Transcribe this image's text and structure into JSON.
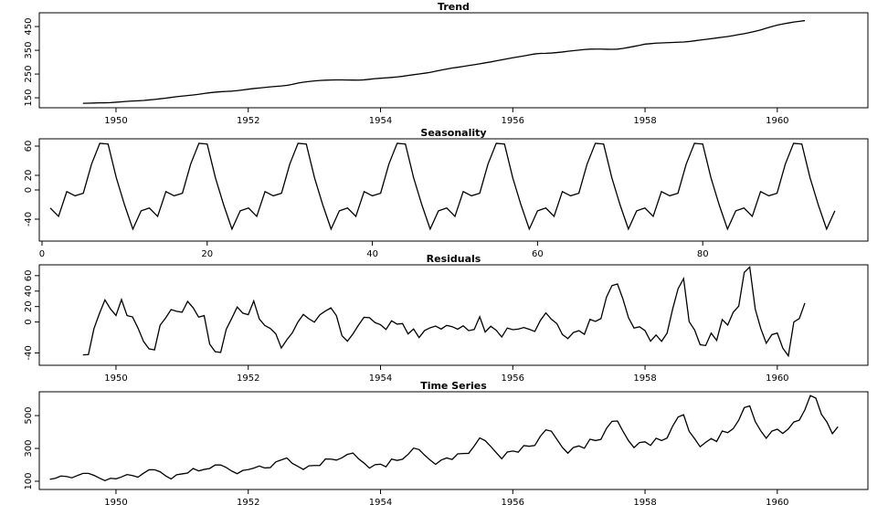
{
  "chart_data": [
    {
      "type": "line",
      "title": "Trend",
      "color": "#000000",
      "x": [
        1949.5,
        1949.583,
        1949.667,
        1949.75,
        1949.833,
        1949.917,
        1950,
        1950.083,
        1950.167,
        1950.25,
        1950.333,
        1950.417,
        1950.5,
        1950.583,
        1950.667,
        1950.75,
        1950.833,
        1950.917,
        1951,
        1951.083,
        1951.167,
        1951.25,
        1951.333,
        1951.417,
        1951.5,
        1951.583,
        1951.667,
        1951.75,
        1951.833,
        1951.917,
        1952,
        1952.083,
        1952.167,
        1952.25,
        1952.333,
        1952.417,
        1952.5,
        1952.583,
        1952.667,
        1952.75,
        1952.833,
        1952.917,
        1953,
        1953.083,
        1953.167,
        1953.25,
        1953.333,
        1953.417,
        1953.5,
        1953.583,
        1953.667,
        1953.75,
        1953.833,
        1953.917,
        1954,
        1954.083,
        1954.167,
        1954.25,
        1954.333,
        1954.417,
        1954.5,
        1954.583,
        1954.667,
        1954.75,
        1954.833,
        1954.917,
        1955,
        1955.083,
        1955.167,
        1955.25,
        1955.333,
        1955.417,
        1955.5,
        1955.583,
        1955.667,
        1955.75,
        1955.833,
        1955.917,
        1956,
        1956.083,
        1956.167,
        1956.25,
        1956.333,
        1956.417,
        1956.5,
        1956.583,
        1956.667,
        1956.75,
        1956.833,
        1956.917,
        1957,
        1957.083,
        1957.167,
        1957.25,
        1957.333,
        1957.417,
        1957.5,
        1957.583,
        1957.667,
        1957.75,
        1957.833,
        1957.917,
        1958,
        1958.083,
        1958.167,
        1958.25,
        1958.333,
        1958.417,
        1958.5,
        1958.583,
        1958.667,
        1958.75,
        1958.833,
        1958.917,
        1959,
        1959.083,
        1959.167,
        1959.25,
        1959.333,
        1959.417,
        1959.5,
        1959.583,
        1959.667,
        1959.75,
        1959.833,
        1959.917,
        1960,
        1960.083,
        1960.167,
        1960.25,
        1960.333,
        1960.417
      ],
      "values": [
        126.79,
        127.25,
        127.96,
        128.58,
        129.0,
        129.75,
        131.25,
        133.08,
        134.92,
        136.42,
        137.42,
        138.75,
        140.92,
        143.17,
        145.71,
        148.42,
        151.54,
        154.71,
        157.12,
        159.54,
        161.83,
        164.75,
        168.17,
        171.25,
        173.58,
        175.46,
        176.83,
        178.04,
        180.17,
        183.12,
        186.21,
        189.04,
        191.29,
        193.58,
        195.83,
        198.04,
        199.75,
        202.21,
        206.42,
        211.71,
        215.83,
        218.5,
        220.92,
        222.92,
        224.08,
        224.71,
        225.33,
        225.33,
        224.96,
        224.58,
        224.46,
        225.54,
        228.0,
        230.46,
        232.25,
        233.92,
        235.62,
        237.75,
        240.5,
        243.96,
        247.17,
        250.25,
        253.5,
        257.12,
        261.83,
        266.67,
        271.12,
        275.21,
        278.5,
        281.96,
        285.75,
        289.33,
        293.25,
        297.17,
        301.0,
        305.46,
        309.96,
        314.42,
        318.62,
        322.38,
        326.33,
        330.54,
        334.75,
        336.75,
        337.42,
        338.62,
        340.54,
        342.83,
        345.96,
        348.25,
        350.92,
        353.08,
        354.83,
        355.25,
        355.08,
        354.42,
        354.08,
        354.96,
        358.0,
        362.08,
        366.42,
        370.79,
        375.96,
        378,
        380,
        381,
        382,
        383,
        384,
        385,
        387,
        390,
        393,
        396,
        399,
        402,
        405,
        408,
        412,
        416,
        420,
        425,
        430,
        436,
        443,
        450,
        456,
        461,
        465,
        469,
        472,
        475
      ],
      "xlim": [
        1948.84,
        1961.37
      ],
      "xticks": [
        1950,
        1952,
        1954,
        1956,
        1958,
        1960
      ],
      "ylim": [
        108,
        508
      ],
      "yticks": [
        150,
        250,
        350,
        450
      ]
    },
    {
      "type": "line",
      "title": "Seasonality",
      "color": "#000000",
      "x": [
        1,
        2,
        3,
        4,
        5,
        6,
        7,
        8,
        9,
        10,
        11,
        12,
        13,
        14,
        15,
        16,
        17,
        18,
        19,
        20,
        21,
        22,
        23,
        24,
        25,
        26,
        27,
        28,
        29,
        30,
        31,
        32,
        33,
        34,
        35,
        36,
        37,
        38,
        39,
        40,
        41,
        42,
        43,
        44,
        45,
        46,
        47,
        48,
        49,
        50,
        51,
        52,
        53,
        54,
        55,
        56,
        57,
        58,
        59,
        60,
        61,
        62,
        63,
        64,
        65,
        66,
        67,
        68,
        69,
        70,
        71,
        72,
        73,
        74,
        75,
        76,
        77,
        78,
        79,
        80,
        81,
        82,
        83,
        84,
        85,
        86,
        87,
        88,
        89,
        90,
        91,
        92,
        93,
        94,
        95,
        96
      ],
      "values": [
        -24.75,
        -36.19,
        -2.24,
        -8.04,
        -4.51,
        35.4,
        63.83,
        62.82,
        16.52,
        -20.64,
        -53.59,
        -28.62,
        -24.75,
        -36.19,
        -2.24,
        -8.04,
        -4.51,
        35.4,
        63.83,
        62.82,
        16.52,
        -20.64,
        -53.59,
        -28.62,
        -24.75,
        -36.19,
        -2.24,
        -8.04,
        -4.51,
        35.4,
        63.83,
        62.82,
        16.52,
        -20.64,
        -53.59,
        -28.62,
        -24.75,
        -36.19,
        -2.24,
        -8.04,
        -4.51,
        35.4,
        63.83,
        62.82,
        16.52,
        -20.64,
        -53.59,
        -28.62,
        -24.75,
        -36.19,
        -2.24,
        -8.04,
        -4.51,
        35.4,
        63.83,
        62.82,
        16.52,
        -20.64,
        -53.59,
        -28.62,
        -24.75,
        -36.19,
        -2.24,
        -8.04,
        -4.51,
        35.4,
        63.83,
        62.82,
        16.52,
        -20.64,
        -53.59,
        -28.62,
        -24.75,
        -36.19,
        -2.24,
        -8.04,
        -4.51,
        35.4,
        63.83,
        62.82,
        16.52,
        -20.64,
        -53.59,
        -28.62,
        -24.75,
        -36.19,
        -2.24,
        -8.04,
        -4.51,
        35.4,
        63.83,
        62.82,
        16.52,
        -20.64,
        -53.59,
        -28.62
      ],
      "xlim": [
        -0.33,
        100
      ],
      "xticks": [
        0,
        20,
        40,
        60,
        80
      ],
      "ylim": [
        -70,
        70
      ],
      "yticks": [
        -40,
        0,
        20,
        60
      ]
    },
    {
      "type": "line",
      "title": "Residuals",
      "color": "#000000",
      "x": [
        1949.5,
        1949.583,
        1949.667,
        1949.75,
        1949.833,
        1949.917,
        1950,
        1950.083,
        1950.167,
        1950.25,
        1950.333,
        1950.417,
        1950.5,
        1950.583,
        1950.667,
        1950.75,
        1950.833,
        1950.917,
        1951,
        1951.083,
        1951.167,
        1951.25,
        1951.333,
        1951.417,
        1951.5,
        1951.583,
        1951.667,
        1951.75,
        1951.833,
        1951.917,
        1952,
        1952.083,
        1952.167,
        1952.25,
        1952.333,
        1952.417,
        1952.5,
        1952.583,
        1952.667,
        1952.75,
        1952.833,
        1952.917,
        1953,
        1953.083,
        1953.167,
        1953.25,
        1953.333,
        1953.417,
        1953.5,
        1953.583,
        1953.667,
        1953.75,
        1953.833,
        1953.917,
        1954,
        1954.083,
        1954.167,
        1954.25,
        1954.333,
        1954.417,
        1954.5,
        1954.583,
        1954.667,
        1954.75,
        1954.833,
        1954.917,
        1955,
        1955.083,
        1955.167,
        1955.25,
        1955.333,
        1955.417,
        1955.5,
        1955.583,
        1955.667,
        1955.75,
        1955.833,
        1955.917,
        1956,
        1956.083,
        1956.167,
        1956.25,
        1956.333,
        1956.417,
        1956.5,
        1956.583,
        1956.667,
        1956.75,
        1956.833,
        1956.917,
        1957,
        1957.083,
        1957.167,
        1957.25,
        1957.333,
        1957.417,
        1957.5,
        1957.583,
        1957.667,
        1957.75,
        1957.833,
        1957.917,
        1958,
        1958.083,
        1958.167,
        1958.25,
        1958.333,
        1958.417,
        1958.5,
        1958.583,
        1958.667,
        1958.75,
        1958.833,
        1958.917,
        1959,
        1959.083,
        1959.167,
        1959.25,
        1959.333,
        1959.417,
        1959.5,
        1959.583,
        1959.667,
        1959.75,
        1959.833,
        1959.917,
        1960,
        1960.083,
        1960.167,
        1960.25,
        1960.333,
        1960.417
      ],
      "values": [
        -42.6,
        -42.1,
        -8.5,
        11.1,
        28.6,
        16.9,
        8.5,
        29.1,
        8.3,
        6.6,
        -7.9,
        -25.2,
        -34.8,
        -36.0,
        -4.2,
        5.2,
        16.1,
        13.9,
        12.6,
        26.7,
        18.4,
        6.3,
        8.3,
        -28.7,
        -38.4,
        -39.3,
        -9.4,
        4.6,
        19.4,
        11.5,
        9.5,
        27.2,
        3.9,
        -4.5,
        -8.3,
        -15.4,
        -33.6,
        -23.0,
        -13.9,
        -0.1,
        9.8,
        4.1,
        -0.2,
        9.3,
        14.2,
        18.3,
        8.2,
        -17.7,
        -24.8,
        -15.4,
        -4.0,
        6.1,
        5.6,
        -0.8,
        -3.5,
        -9.7,
        1.6,
        -2.7,
        -2.0,
        -15.4,
        -9.0,
        -20.1,
        -11.0,
        -7.5,
        -5.2,
        -9.1,
        -4.4,
        -6.0,
        -9.3,
        -4.9,
        -11.2,
        -9.7,
        6.9,
        -13.0,
        -5.5,
        -10.8,
        -19.4,
        -7.8,
        -9.9,
        -9.2,
        -7.1,
        -9.5,
        -12.2,
        1.9,
        11.8,
        3.6,
        -2.1,
        -16.2,
        -21.4,
        -13.6,
        -11.2,
        -15.9,
        3.4,
        0.8,
        4.4,
        32.2,
        47.1,
        49.2,
        29.5,
        5.6,
        -7.8,
        -6.2,
        -11.2,
        -24.8,
        -16.8,
        -25.0,
        -14.5,
        16.6,
        43.2,
        56.2,
        0.5,
        -10.4,
        -29.4,
        -30.4,
        -14.3,
        -23.8,
        3.2,
        -4.0,
        12.5,
        20.6,
        64.2,
        71.2,
        16.5,
        -8.4,
        -27.4,
        -16.4,
        -14.3,
        -33.8,
        -43.8,
        0.0,
        4.5,
        24.6
      ],
      "xlim": [
        1948.84,
        1961.37
      ],
      "xticks": [
        1950,
        1952,
        1954,
        1956,
        1958,
        1960
      ],
      "ylim": [
        -56,
        74
      ],
      "yticks": [
        -40,
        0,
        20,
        40,
        60
      ]
    },
    {
      "type": "line",
      "title": "Time Series",
      "color": "#000000",
      "x": [
        1949,
        1949.083,
        1949.167,
        1949.25,
        1949.333,
        1949.417,
        1949.5,
        1949.583,
        1949.667,
        1949.75,
        1949.833,
        1949.917,
        1950,
        1950.083,
        1950.167,
        1950.25,
        1950.333,
        1950.417,
        1950.5,
        1950.583,
        1950.667,
        1950.75,
        1950.833,
        1950.917,
        1951,
        1951.083,
        1951.167,
        1951.25,
        1951.333,
        1951.417,
        1951.5,
        1951.583,
        1951.667,
        1951.75,
        1951.833,
        1951.917,
        1952,
        1952.083,
        1952.167,
        1952.25,
        1952.333,
        1952.417,
        1952.5,
        1952.583,
        1952.667,
        1952.75,
        1952.833,
        1952.917,
        1953,
        1953.083,
        1953.167,
        1953.25,
        1953.333,
        1953.417,
        1953.5,
        1953.583,
        1953.667,
        1953.75,
        1953.833,
        1953.917,
        1954,
        1954.083,
        1954.167,
        1954.25,
        1954.333,
        1954.417,
        1954.5,
        1954.583,
        1954.667,
        1954.75,
        1954.833,
        1954.917,
        1955,
        1955.083,
        1955.167,
        1955.25,
        1955.333,
        1955.417,
        1955.5,
        1955.583,
        1955.667,
        1955.75,
        1955.833,
        1955.917,
        1956,
        1956.083,
        1956.167,
        1956.25,
        1956.333,
        1956.417,
        1956.5,
        1956.583,
        1956.667,
        1956.75,
        1956.833,
        1956.917,
        1957,
        1957.083,
        1957.167,
        1957.25,
        1957.333,
        1957.417,
        1957.5,
        1957.583,
        1957.667,
        1957.75,
        1957.833,
        1957.917,
        1958,
        1958.083,
        1958.167,
        1958.25,
        1958.333,
        1958.417,
        1958.5,
        1958.583,
        1958.667,
        1958.75,
        1958.833,
        1958.917,
        1959,
        1959.083,
        1959.167,
        1959.25,
        1959.333,
        1959.417,
        1959.5,
        1959.583,
        1959.667,
        1959.75,
        1959.833,
        1959.917,
        1960,
        1960.083,
        1960.167,
        1960.25,
        1960.333,
        1960.417,
        1960.5,
        1960.583,
        1960.667,
        1960.75,
        1960.833,
        1960.917
      ],
      "values": [
        112,
        118,
        132,
        129,
        121,
        135,
        148,
        148,
        136,
        119,
        104,
        118,
        115,
        126,
        141,
        135,
        125,
        149,
        170,
        170,
        158,
        133,
        114,
        140,
        145,
        150,
        178,
        163,
        172,
        178,
        199,
        199,
        184,
        162,
        146,
        166,
        171,
        180,
        193,
        181,
        183,
        218,
        230,
        242,
        209,
        191,
        172,
        194,
        196,
        196,
        236,
        235,
        229,
        243,
        264,
        272,
        237,
        211,
        180,
        201,
        204,
        188,
        235,
        227,
        234,
        264,
        302,
        293,
        259,
        229,
        203,
        229,
        242,
        233,
        267,
        269,
        270,
        315,
        364,
        347,
        312,
        274,
        237,
        278,
        284,
        277,
        317,
        313,
        318,
        374,
        413,
        405,
        355,
        306,
        271,
        306,
        315,
        301,
        356,
        348,
        355,
        422,
        465,
        467,
        404,
        347,
        305,
        336,
        340,
        318,
        362,
        348,
        363,
        435,
        491,
        505,
        404,
        359,
        310,
        337,
        360,
        342,
        406,
        396,
        420,
        472,
        548,
        559,
        463,
        407,
        362,
        405,
        417,
        391,
        419,
        461,
        472,
        535,
        622,
        606,
        508,
        461,
        390,
        432
      ],
      "xlim": [
        1948.84,
        1961.37
      ],
      "xticks": [
        1950,
        1952,
        1954,
        1956,
        1958,
        1960
      ],
      "ylim": [
        50,
        645
      ],
      "yticks": [
        100,
        300,
        500
      ]
    }
  ]
}
